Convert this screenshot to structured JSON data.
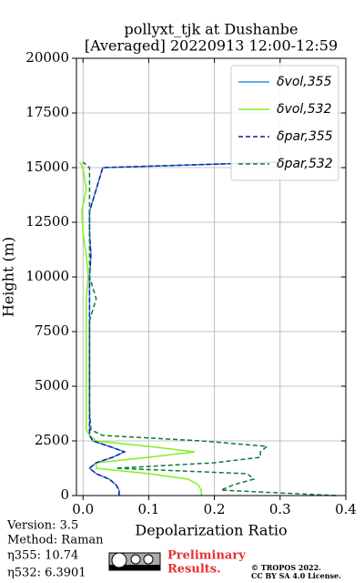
{
  "chart_data": {
    "type": "line",
    "title": [
      "pollyxt_tjk at Dushanbe",
      "[Averaged] 20220913 12:00-12:59"
    ],
    "xlabel": "Depolarization Ratio",
    "ylabel": "Height (m)",
    "xlim": [
      -0.01,
      0.4
    ],
    "ylim": [
      0,
      20000
    ],
    "xticks": [
      {
        "value": 0,
        "label": "0.0"
      },
      0.1,
      0.2,
      0.3,
      0.4
    ],
    "yticks": [
      0,
      2500,
      5000,
      7500,
      10000,
      12500,
      15000,
      17500,
      20000
    ],
    "grid": true,
    "legend": "upper right",
    "y": [
      0,
      250,
      500,
      750,
      1000,
      1250,
      1500,
      1750,
      2000,
      2250,
      2500,
      2750,
      3000,
      4000,
      5000,
      6000,
      7000,
      8000,
      9000,
      10000,
      11000,
      12000,
      13000,
      14000,
      15000,
      15250
    ],
    "series": [
      {
        "name": "δvol,355",
        "color": "#2a93e8",
        "dash": "solid",
        "values": [
          0.055,
          0.055,
          0.05,
          0.04,
          0.02,
          0.01,
          0.02,
          0.045,
          0.063,
          0.04,
          0.015,
          0.01,
          0.01,
          0.01,
          0.01,
          0.01,
          0.01,
          0.01,
          0.01,
          0.01,
          0.012,
          0.01,
          0.01,
          0.02,
          0.03,
          0.3
        ]
      },
      {
        "name": "δvol,532",
        "color": "#80f020",
        "dash": "solid",
        "values": [
          0.18,
          0.18,
          0.175,
          0.16,
          0.1,
          0.02,
          0.02,
          0.1,
          0.17,
          0.1,
          0.02,
          0.01,
          0.005,
          0.005,
          0.005,
          0.005,
          0.005,
          0.005,
          0.005,
          0.008,
          0.005,
          0,
          -0.002,
          0.005,
          0,
          -0.005
        ]
      },
      {
        "name": "δpar,355",
        "color": "#1a1aa0",
        "dash": "dashed",
        "values": [
          0.055,
          0.055,
          0.05,
          0.04,
          0.02,
          0.01,
          0.02,
          0.045,
          0.063,
          0.04,
          0.015,
          0.01,
          0.01,
          0.01,
          0.01,
          0.01,
          0.01,
          0.01,
          0.01,
          0.01,
          0.012,
          0.01,
          0.01,
          0.02,
          0.03,
          0.3
        ]
      },
      {
        "name": "δpar,532",
        "color": "#0a7a3a",
        "dash": "dashed",
        "values": [
          0.385,
          0.21,
          0.23,
          0.26,
          0.25,
          0.05,
          0.2,
          0.27,
          0.27,
          0.28,
          0.18,
          0.03,
          0.012,
          0.01,
          0.01,
          0.01,
          0.01,
          0.01,
          0.02,
          0.01,
          0.01,
          0.01,
          0.01,
          0.01,
          0.01,
          0
        ]
      }
    ]
  },
  "footer": {
    "version": "Version: 3.5",
    "method": "Method: Raman",
    "eta355": "η355:  10.74",
    "eta532": "η532: 6.3901",
    "preliminary": [
      "Preliminary",
      "Results."
    ],
    "copyright": [
      "© TROPOS 2022.",
      "CC BY SA 4.0 License."
    ]
  }
}
